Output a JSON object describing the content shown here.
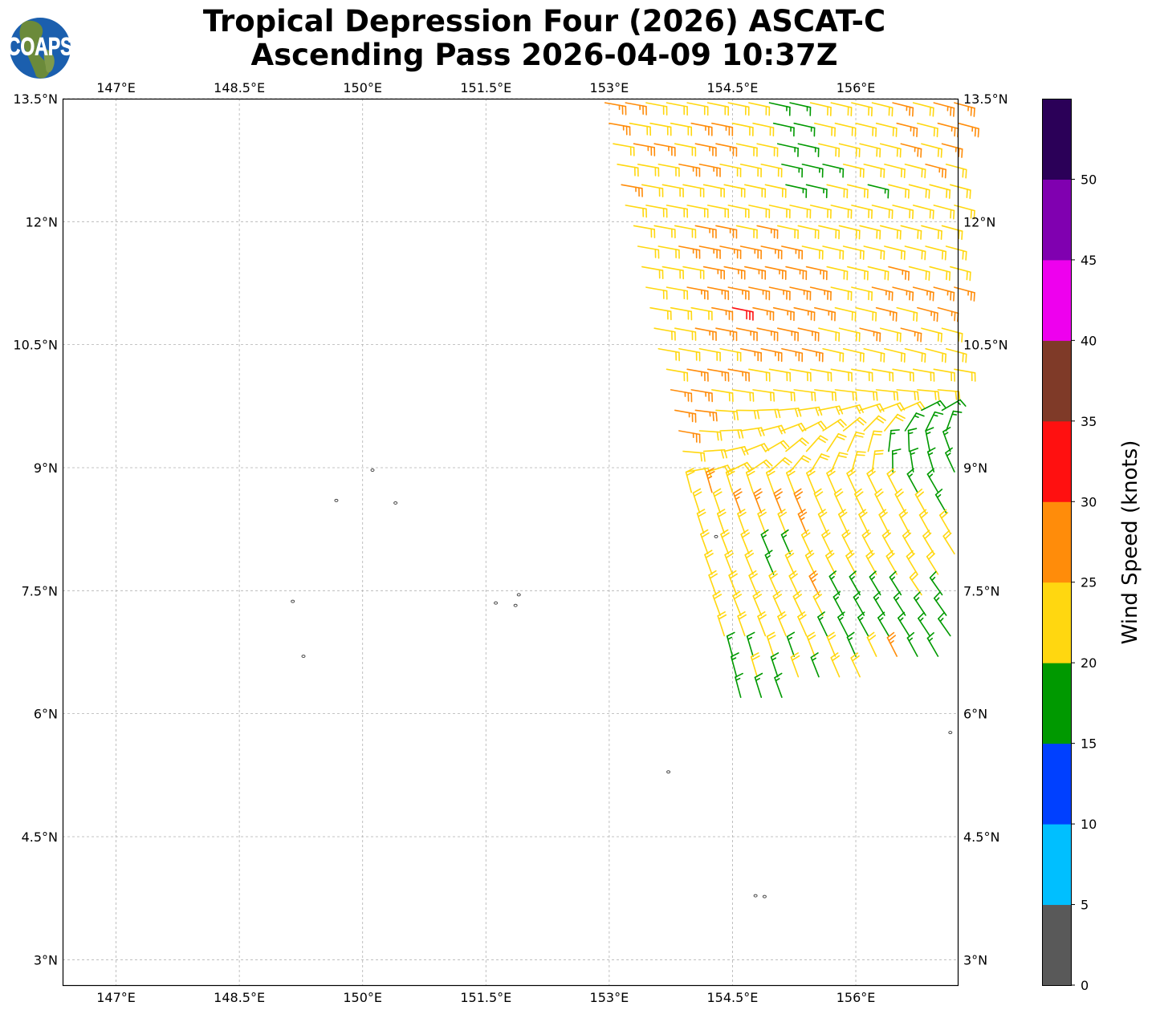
{
  "chart_data": {
    "type": "scatter",
    "subtype": "wind-barb-map",
    "title": "Tropical Depression Four (2026) ASCAT-C",
    "subtitle": "Ascending Pass 2026-04-09 10:37Z",
    "logo_text": "COAPS",
    "xlim": [
      146.35,
      157.24
    ],
    "ylim": [
      2.69,
      13.5
    ],
    "grid": true,
    "lon_ticks": [
      {
        "value": 147,
        "label": "147°E"
      },
      {
        "value": 148.5,
        "label": "148.5°E"
      },
      {
        "value": 150,
        "label": "150°E"
      },
      {
        "value": 151.5,
        "label": "151.5°E"
      },
      {
        "value": 153,
        "label": "153°E"
      },
      {
        "value": 154.5,
        "label": "154.5°E"
      },
      {
        "value": 156,
        "label": "156°E"
      }
    ],
    "lat_ticks": [
      {
        "value": 13.5,
        "label": "13.5°N"
      },
      {
        "value": 12,
        "label": "12°N"
      },
      {
        "value": 10.5,
        "label": "10.5°N"
      },
      {
        "value": 9,
        "label": "9°N"
      },
      {
        "value": 7.5,
        "label": "7.5°N"
      },
      {
        "value": 6,
        "label": "6°N"
      },
      {
        "value": 4.5,
        "label": "4.5°N"
      },
      {
        "value": 3,
        "label": "3°N"
      }
    ],
    "colorbar": {
      "label": "Wind Speed (knots)",
      "range": [
        0,
        55
      ],
      "ticks": [
        0,
        5,
        10,
        15,
        20,
        25,
        30,
        35,
        40,
        45,
        50
      ],
      "bins": [
        "#595959",
        "#00bfff",
        "#0040ff",
        "#009900",
        "#ffd710",
        "#ff8c0a",
        "#ff1010",
        "#7f3a28",
        "#ee00ee",
        "#8000b0",
        "#2b0058"
      ]
    },
    "islands": [
      [
        149.68,
        8.6
      ],
      [
        150.12,
        8.97
      ],
      [
        150.4,
        8.57
      ],
      [
        149.15,
        7.37
      ],
      [
        149.28,
        6.7
      ],
      [
        151.62,
        7.35
      ],
      [
        151.9,
        7.45
      ],
      [
        151.86,
        7.32
      ],
      [
        153.72,
        5.29
      ],
      [
        154.3,
        8.16
      ],
      [
        154.78,
        3.78
      ],
      [
        154.89,
        3.77
      ],
      [
        157.15,
        5.77
      ]
    ],
    "barb_spacing_deg": 0.25,
    "barb_rows": [
      {
        "lat": 13.45,
        "lon0": 152.95,
        "dir": [
          100,
          105
        ],
        "speeds": [
          27,
          26,
          22,
          22,
          21,
          23,
          22,
          22,
          18,
          18,
          22,
          22,
          23,
          22,
          26,
          22,
          27,
          28
        ]
      },
      {
        "lat": 13.2,
        "lon0": 153.0,
        "dir": [
          100,
          105
        ],
        "speeds": [
          28,
          23,
          22,
          23,
          27,
          26,
          22,
          22,
          18,
          17,
          22,
          23,
          22,
          23,
          27,
          22,
          27,
          26
        ]
      },
      {
        "lat": 12.95,
        "lon0": 153.05,
        "dir": [
          100,
          105
        ],
        "speeds": [
          22,
          27,
          28,
          22,
          27,
          26,
          22,
          22,
          17,
          18,
          22,
          22,
          23,
          22,
          27,
          22,
          27
        ]
      },
      {
        "lat": 12.7,
        "lon0": 153.1,
        "dir": [
          100,
          105
        ],
        "speeds": [
          22,
          22,
          23,
          27,
          28,
          23,
          22,
          22,
          17,
          19,
          18,
          22,
          22,
          22,
          23,
          27,
          22
        ]
      },
      {
        "lat": 12.45,
        "lon0": 153.15,
        "dir": [
          100,
          105
        ],
        "speeds": [
          27,
          22,
          22,
          22,
          23,
          22,
          22,
          22,
          17,
          18,
          22,
          22,
          19,
          22,
          22,
          22,
          23
        ]
      },
      {
        "lat": 12.2,
        "lon0": 153.2,
        "dir": [
          100,
          105
        ],
        "speeds": [
          22,
          23,
          22,
          22,
          22,
          22,
          22,
          23,
          22,
          22,
          22,
          22,
          22,
          22,
          22,
          22,
          22
        ]
      },
      {
        "lat": 11.95,
        "lon0": 153.3,
        "dir": [
          100,
          105
        ],
        "speeds": [
          22,
          22,
          23,
          26,
          27,
          22,
          26,
          22,
          22,
          22,
          22,
          22,
          22,
          23,
          22,
          22
        ]
      },
      {
        "lat": 11.7,
        "lon0": 153.35,
        "dir": [
          100,
          105
        ],
        "speeds": [
          22,
          22,
          27,
          27,
          26,
          28,
          27,
          27,
          23,
          22,
          22,
          22,
          22,
          22,
          22,
          22
        ]
      },
      {
        "lat": 11.45,
        "lon0": 153.4,
        "dir": [
          100,
          105
        ],
        "speeds": [
          22,
          23,
          22,
          27,
          28,
          27,
          26,
          27,
          28,
          23,
          22,
          22,
          27,
          22,
          23,
          22
        ]
      },
      {
        "lat": 11.2,
        "lon0": 153.45,
        "dir": [
          100,
          105
        ],
        "speeds": [
          22,
          22,
          27,
          28,
          26,
          27,
          27,
          28,
          27,
          22,
          22,
          27,
          27,
          26,
          27,
          26
        ]
      },
      {
        "lat": 10.95,
        "lon0": 153.5,
        "dir": [
          100,
          105
        ],
        "speeds": [
          22,
          22,
          23,
          27,
          32,
          28,
          27,
          26,
          27,
          22,
          23,
          27,
          22,
          26,
          27
        ]
      },
      {
        "lat": 10.7,
        "lon0": 153.55,
        "dir": [
          100,
          105
        ],
        "speeds": [
          22,
          22,
          26,
          27,
          28,
          27,
          27,
          26,
          22,
          23,
          27,
          22,
          26,
          22,
          22
        ]
      },
      {
        "lat": 10.45,
        "lon0": 153.6,
        "dir": [
          100,
          105
        ],
        "speeds": [
          22,
          22,
          22,
          23,
          27,
          27,
          26,
          27,
          22,
          22,
          22,
          22,
          23,
          22,
          22
        ]
      },
      {
        "lat": 10.2,
        "lon0": 153.7,
        "dir": [
          100,
          100
        ],
        "speeds": [
          22,
          26,
          27,
          27,
          22,
          22,
          22,
          22,
          22,
          22,
          22,
          22,
          22,
          22,
          23
        ]
      },
      {
        "lat": 9.95,
        "lon0": 153.75,
        "dir": [
          100,
          95
        ],
        "speeds": [
          27,
          27,
          22,
          22,
          22,
          22,
          22,
          22,
          22,
          22,
          22,
          22,
          22,
          22
        ]
      },
      {
        "lat": 9.7,
        "lon0": 153.8,
        "dir": [
          100,
          60
        ],
        "speeds": [
          27,
          27,
          22,
          22,
          22,
          22,
          22,
          22,
          22,
          22,
          22,
          23,
          18,
          18
        ]
      },
      {
        "lat": 9.45,
        "lon0": 153.85,
        "dir": [
          100,
          20
        ],
        "speeds": [
          26,
          22,
          22,
          22,
          22,
          22,
          22,
          22,
          22,
          22,
          22,
          18,
          18,
          17
        ]
      },
      {
        "lat": 9.2,
        "lon0": 153.9,
        "dir": [
          95,
          -20
        ],
        "speeds": [
          22,
          22,
          22,
          22,
          22,
          22,
          22,
          22,
          22,
          22,
          18,
          18,
          17,
          18
        ]
      },
      {
        "lat": 8.95,
        "lon0": 153.95,
        "dir": [
          80,
          -25
        ],
        "speeds": [
          22,
          22,
          22,
          22,
          22,
          22,
          22,
          22,
          22,
          22,
          17,
          18,
          18,
          17
        ]
      },
      {
        "lat": 8.7,
        "lon0": 154.0,
        "dir": [
          -15,
          -30
        ],
        "speeds": [
          22,
          26,
          22,
          22,
          22,
          22,
          22,
          22,
          22,
          22,
          22,
          18,
          18
        ]
      },
      {
        "lat": 8.45,
        "lon0": 154.1,
        "dir": [
          -18,
          -30
        ],
        "speeds": [
          22,
          22,
          27,
          27,
          26,
          28,
          22,
          22,
          22,
          22,
          22,
          22,
          18
        ]
      },
      {
        "lat": 8.2,
        "lon0": 154.15,
        "dir": [
          -18,
          -30
        ],
        "speeds": [
          22,
          22,
          22,
          22,
          22,
          27,
          22,
          22,
          22,
          22,
          22,
          22,
          22
        ]
      },
      {
        "lat": 7.95,
        "lon0": 154.2,
        "dir": [
          -20,
          -32
        ],
        "speeds": [
          22,
          22,
          22,
          18,
          18,
          22,
          22,
          22,
          22,
          22,
          22,
          22,
          22
        ]
      },
      {
        "lat": 7.7,
        "lon0": 154.25,
        "dir": [
          -20,
          -32
        ],
        "speeds": [
          22,
          22,
          22,
          18,
          22,
          22,
          22,
          22,
          22,
          22,
          22,
          22
        ]
      },
      {
        "lat": 7.45,
        "lon0": 154.3,
        "dir": [
          -20,
          -35
        ],
        "speeds": [
          22,
          22,
          22,
          22,
          22,
          26,
          18,
          18,
          18,
          18,
          22,
          18
        ]
      },
      {
        "lat": 7.2,
        "lon0": 154.35,
        "dir": [
          -20,
          -35
        ],
        "speeds": [
          22,
          22,
          22,
          22,
          22,
          22,
          18,
          18,
          18,
          18,
          18,
          18
        ]
      },
      {
        "lat": 6.95,
        "lon0": 154.4,
        "dir": [
          -18,
          -35
        ],
        "speeds": [
          22,
          22,
          22,
          22,
          22,
          18,
          18,
          18,
          18,
          18,
          18,
          18
        ]
      },
      {
        "lat": 6.7,
        "lon0": 154.5,
        "dir": [
          -15,
          -30
        ],
        "speeds": [
          18,
          18,
          22,
          18,
          22,
          22,
          18,
          22,
          27,
          18,
          18
        ]
      },
      {
        "lat": 6.45,
        "lon0": 154.55,
        "dir": [
          -15,
          -25
        ],
        "speeds": [
          18,
          22,
          18,
          22,
          18,
          22,
          22
        ]
      },
      {
        "lat": 6.2,
        "lon0": 154.6,
        "dir": [
          -15,
          -20
        ],
        "speeds": [
          18,
          18,
          18
        ]
      }
    ]
  }
}
